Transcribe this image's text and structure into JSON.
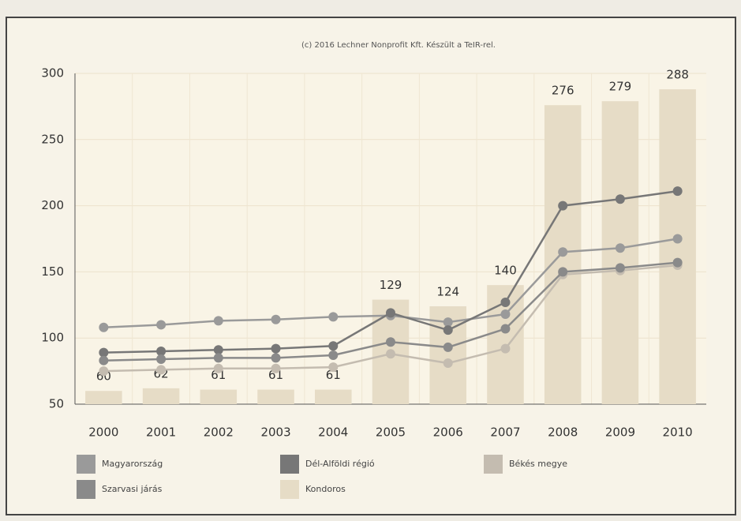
{
  "chart_data": {
    "type": "combo",
    "title": "(c) 2016 Lechner Nonprofit Kft. Készült a TeIR-rel.",
    "categories": [
      "2000",
      "2001",
      "2002",
      "2003",
      "2004",
      "2005",
      "2006",
      "2007",
      "2008",
      "2009",
      "2010"
    ],
    "series": [
      {
        "name": "Magyarország",
        "type": "line",
        "color": "#9a9a9a",
        "values": [
          108,
          110,
          113,
          114,
          116,
          117,
          112,
          118,
          165,
          168,
          175
        ]
      },
      {
        "name": "Dél-Alföldi régió",
        "type": "line",
        "color": "#777777",
        "values": [
          89,
          90,
          91,
          92,
          94,
          119,
          106,
          127,
          200,
          205,
          211
        ]
      },
      {
        "name": "Békés megye",
        "type": "line",
        "color": "#c4bcb0",
        "values": [
          75,
          76,
          77,
          77,
          78,
          88,
          81,
          92,
          148,
          151,
          155
        ]
      },
      {
        "name": "Szarvasi járás",
        "type": "line",
        "color": "#8a8a8a",
        "values": [
          83,
          84,
          85,
          85,
          87,
          97,
          93,
          107,
          150,
          153,
          157
        ]
      },
      {
        "name": "Kondoros",
        "type": "bar",
        "color": "#e6dcc6",
        "values": [
          60,
          62,
          61,
          61,
          61,
          129,
          124,
          140,
          276,
          279,
          288
        ]
      }
    ],
    "ylim": [
      50,
      300
    ],
    "yticks": [
      50,
      100,
      150,
      200,
      250,
      300
    ],
    "grid": true
  }
}
